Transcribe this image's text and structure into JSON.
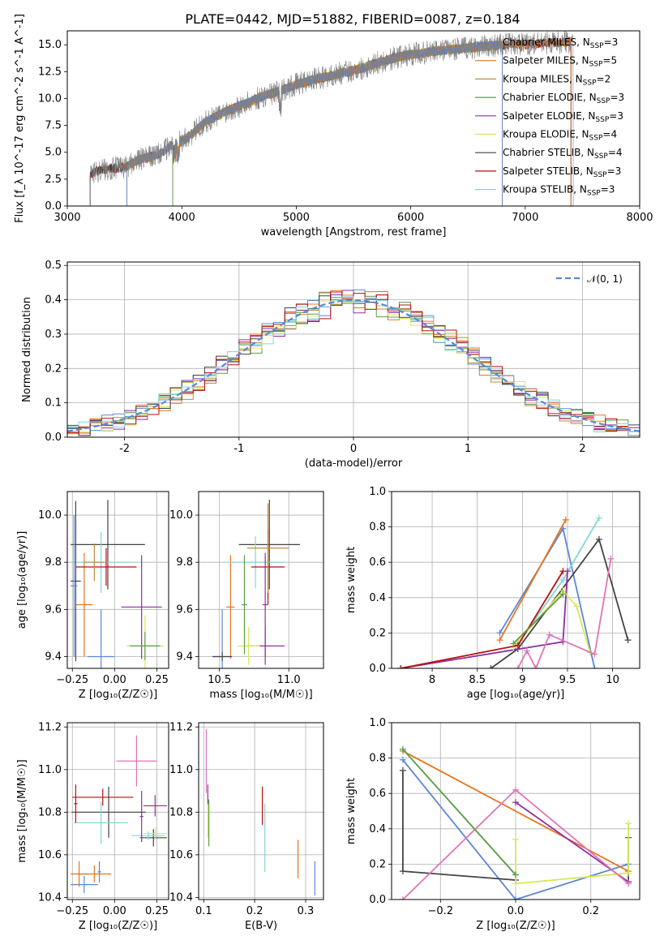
{
  "figure": {
    "title": "PLATE=0442, MJD=51882, FIBERID=0087, z=0.184"
  },
  "series_styles": [
    {
      "name": "Chabrier MILES",
      "nssp": "3",
      "color": "#5b87d6"
    },
    {
      "name": "Salpeter MILES",
      "nssp": "5",
      "color": "#e8741d"
    },
    {
      "name": "Kroupa MILES",
      "nssp": "2",
      "color": "#c08a3a"
    },
    {
      "name": "Chabrier ELODIE",
      "nssp": "3",
      "color": "#5c9e45"
    },
    {
      "name": "Salpeter ELODIE",
      "nssp": "3",
      "color": "#8e2fa3"
    },
    {
      "name": "Kroupa ELODIE",
      "nssp": "4",
      "color": "#d6e85b"
    },
    {
      "name": "Chabrier STELIB",
      "nssp": "4",
      "color": "#444444"
    },
    {
      "name": "Salpeter STELIB",
      "nssp": "3",
      "color": "#b80f0f"
    },
    {
      "name": "Kroupa STELIB",
      "nssp": "3",
      "color": "#82d6d6"
    }
  ],
  "chart_data": [
    {
      "id": "spectrum",
      "type": "line",
      "xlabel": "wavelength [Angstrom, rest frame]",
      "ylabel": "Flux [f_λ 10^-17 erg cm^-2 s^-1 A^-1]",
      "xlim": [
        3000,
        8000
      ],
      "ylim": [
        0,
        16.3
      ],
      "xticks": [
        3000,
        4000,
        5000,
        6000,
        7000,
        8000
      ],
      "yticks": [
        0.0,
        2.5,
        5.0,
        7.5,
        10.0,
        12.5,
        15.0
      ],
      "data_spectrum": {
        "x": [
          3200,
          3300,
          3400,
          3500,
          3600,
          3700,
          3800,
          3900,
          4000,
          4100,
          4200,
          4300,
          4400,
          4500,
          4600,
          4700,
          4800,
          4900,
          5000,
          5100,
          5200,
          5300,
          5400,
          5500,
          5600,
          5700,
          5800,
          5900,
          6000,
          6100,
          6200,
          6300,
          6400,
          6500,
          6600,
          6700,
          6800,
          6900,
          7000,
          7100,
          7200,
          7300,
          7400
        ],
        "y": [
          3.0,
          3.4,
          3.5,
          3.6,
          4.2,
          4.5,
          4.8,
          5.6,
          6.0,
          6.8,
          7.8,
          8.3,
          8.9,
          9.3,
          9.7,
          10.2,
          10.5,
          10.9,
          11.3,
          11.6,
          11.9,
          12.1,
          12.4,
          12.6,
          12.9,
          13.3,
          13.6,
          13.9,
          14.1,
          14.2,
          14.4,
          14.5,
          14.6,
          14.7,
          14.8,
          14.9,
          15.0,
          15.1,
          15.0,
          15.1,
          15.2,
          15.2,
          15.3
        ]
      },
      "model_cut_starts": [
        3520,
        3520,
        3520,
        3920,
        3920,
        3920,
        3200,
        3200,
        3200
      ],
      "model_cut_ends": [
        6800,
        7400,
        6800,
        6800,
        6800,
        6800,
        7400,
        7400,
        6800
      ],
      "legend_position": "upper right"
    },
    {
      "id": "residuals",
      "type": "histogram",
      "xlabel": "(data-model)/error",
      "ylabel": "Normed distribution",
      "xlim": [
        -2.5,
        2.5
      ],
      "ylim": [
        0,
        0.51
      ],
      "xticks": [
        -2,
        -1,
        0,
        1,
        2
      ],
      "yticks": [
        0.0,
        0.1,
        0.2,
        0.3,
        0.4,
        0.5
      ],
      "bin_edges": [
        -2.5,
        -2.4,
        -2.3,
        -2.2,
        -2.1,
        -2.0,
        -1.9,
        -1.8,
        -1.7,
        -1.6,
        -1.5,
        -1.4,
        -1.3,
        -1.2,
        -1.1,
        -1.0,
        -0.9,
        -0.8,
        -0.7,
        -0.6,
        -0.5,
        -0.4,
        -0.3,
        -0.2,
        -0.1,
        0.0,
        0.1,
        0.2,
        0.3,
        0.4,
        0.5,
        0.6,
        0.7,
        0.8,
        0.9,
        1.0,
        1.1,
        1.2,
        1.3,
        1.4,
        1.5,
        1.6,
        1.7,
        1.8,
        1.9,
        2.0,
        2.1,
        2.2,
        2.3,
        2.4,
        2.5
      ],
      "gaussian_label": "𝒩(0, 1)",
      "gaussian_color": "#5b87d6",
      "legend_position": "upper right"
    },
    {
      "id": "age-vs-Z",
      "type": "errorbar",
      "xlabel": "Z [log₁₀(Z/Z☉)]",
      "ylabel": "age  [log₁₀(age/yr)]",
      "xlim": [
        -0.28,
        0.32
      ],
      "ylim": [
        9.35,
        10.1
      ],
      "xticks": [
        -0.25,
        0.0,
        0.25
      ],
      "xticklabels": [
        "−0.25",
        "0.00",
        "0.25"
      ],
      "yticks": [
        9.4,
        9.6,
        9.8,
        10.0
      ],
      "points": [
        {
          "s": 0,
          "x": -0.08,
          "y": 9.4,
          "xerr": 0.08,
          "yerr": 0.2
        },
        {
          "s": 1,
          "x": -0.18,
          "y": 9.62,
          "xerr": 0.05,
          "yerr": 0.22
        },
        {
          "s": 6,
          "x": -0.04,
          "y": 9.875,
          "xerr": 0.22,
          "yerr": 0.19
        },
        {
          "s": 8,
          "x": -0.08,
          "y": 9.8,
          "xerr": 0.17,
          "yerr": 0.13
        },
        {
          "s": 4,
          "x": 0.16,
          "y": 9.61,
          "xerr": 0.12,
          "yerr": 0.22
        },
        {
          "s": 5,
          "x": 0.18,
          "y": 9.445,
          "xerr": 0.11,
          "yerr": 0.13
        },
        {
          "s": 7,
          "x": -0.05,
          "y": 9.78,
          "xerr": 0.18,
          "yerr": 0.08
        },
        {
          "s": 2,
          "x": -0.12,
          "y": 9.8,
          "xerr": 0.06,
          "yerr": 0.08
        },
        {
          "s": 6,
          "x": -0.23,
          "y": 9.72,
          "xerr": 0.03,
          "yerr": 0.34
        },
        {
          "s": 3,
          "x": 0.18,
          "y": 9.445,
          "xerr": 0.09,
          "yerr": 0.06
        },
        {
          "s": 0,
          "x": -0.24,
          "y": 9.7,
          "xerr": 0.02,
          "yerr": 0.3
        }
      ]
    },
    {
      "id": "age-vs-mass",
      "type": "errorbar",
      "xlabel": "mass [log₁₀(M/M☉)]",
      "ylabel": "",
      "xlim": [
        10.35,
        11.25
      ],
      "ylim": [
        9.35,
        10.1
      ],
      "xticks": [
        10.5,
        11.0
      ],
      "xticklabels": [
        "10.5",
        "11.0"
      ],
      "yticks": [
        9.4,
        9.6,
        9.8,
        10.0
      ],
      "points": [
        {
          "s": 0,
          "x": 10.52,
          "y": 9.4,
          "xerr": 0.07,
          "yerr": 0.2
        },
        {
          "s": 1,
          "x": 10.58,
          "y": 9.61,
          "xerr": 0.03,
          "yerr": 0.22
        },
        {
          "s": 6,
          "x": 10.86,
          "y": 9.875,
          "xerr": 0.22,
          "yerr": 0.19
        },
        {
          "s": 8,
          "x": 10.76,
          "y": 9.8,
          "xerr": 0.2,
          "yerr": 0.11
        },
        {
          "s": 4,
          "x": 10.83,
          "y": 9.445,
          "xerr": 0.14,
          "yerr": 0.08
        },
        {
          "s": 5,
          "x": 10.71,
          "y": 9.445,
          "xerr": 0.08,
          "yerr": 0.08
        },
        {
          "s": 7,
          "x": 10.85,
          "y": 9.78,
          "xerr": 0.12,
          "yerr": 0.16
        },
        {
          "s": 3,
          "x": 10.68,
          "y": 9.62,
          "xerr": 0.02,
          "yerr": 0.21
        },
        {
          "s": 2,
          "x": 10.85,
          "y": 9.86,
          "xerr": 0.15,
          "yerr": 0.19
        },
        {
          "s": 4,
          "x": 10.83,
          "y": 9.62,
          "xerr": 0.02,
          "yerr": 0.22
        },
        {
          "s": 6,
          "x": 10.52,
          "y": 9.4,
          "xerr": 0.07,
          "yerr": 0.02
        }
      ]
    },
    {
      "id": "massweight-vs-age",
      "type": "line",
      "xlabel": "age  [log₁₀(age/yr)]",
      "ylabel": "mass weight",
      "xlim": [
        7.55,
        10.3
      ],
      "ylim": [
        0.0,
        1.0
      ],
      "xticks": [
        8.0,
        8.5,
        9.0,
        9.5,
        10.0
      ],
      "yticks": [
        0.0,
        0.2,
        0.4,
        0.6,
        0.8,
        1.0
      ],
      "lines": [
        {
          "s": 0,
          "x": [
            8.75,
            9.45,
            9.8
          ],
          "y": [
            0.2,
            0.79,
            0.0
          ]
        },
        {
          "s": 1,
          "x": [
            8.75,
            9.48
          ],
          "y": [
            0.16,
            0.84
          ]
        },
        {
          "s": 6,
          "x": [
            8.65,
            8.95,
            9.85,
            10.17
          ],
          "y": [
            0.0,
            0.11,
            0.73,
            0.16
          ]
        },
        {
          "s": 8,
          "x": [
            8.95,
            9.45,
            9.85
          ],
          "y": [
            0.14,
            0.5,
            0.85
          ]
        },
        {
          "s": 4,
          "x": [
            7.65,
            9.45,
            9.5
          ],
          "y": [
            0.0,
            0.15,
            0.55
          ]
        },
        {
          "s": 5,
          "x": [
            8.9,
            9.45,
            9.6,
            9.75
          ],
          "y": [
            0.12,
            0.44,
            0.35,
            0.09
          ]
        },
        {
          "s": 9,
          "x": [
            8.95,
            9.05,
            9.15,
            9.3,
            9.8,
            9.98
          ],
          "y": [
            0.0,
            0.1,
            0.0,
            0.19,
            0.08,
            0.62
          ]
        },
        {
          "s": 7,
          "x": [
            7.65,
            8.95,
            9.45
          ],
          "y": [
            0.0,
            0.13,
            0.55
          ]
        },
        {
          "s": 3,
          "x": [
            8.9,
            9.45
          ],
          "y": [
            0.14,
            0.42
          ]
        }
      ]
    },
    {
      "id": "mass-vs-Z",
      "type": "errorbar",
      "xlabel": "Z [log₁₀(Z/Z☉)]",
      "ylabel": "mass [log₁₀(M/M☉)]",
      "xlim": [
        -0.28,
        0.32
      ],
      "ylim": [
        10.39,
        11.22
      ],
      "xticks": [
        -0.25,
        0.0,
        0.25
      ],
      "xticklabels": [
        "−0.25",
        "0.00",
        "0.25"
      ],
      "yticks": [
        10.4,
        10.6,
        10.8,
        11.0,
        11.2
      ],
      "points": [
        {
          "s": 0,
          "x": -0.18,
          "y": 10.46,
          "xerr": 0.08,
          "yerr": 0.04
        },
        {
          "s": 0,
          "x": -0.09,
          "y": 10.52,
          "xerr": 0.01,
          "yerr": 0.05
        },
        {
          "s": 1,
          "x": -0.21,
          "y": 10.51,
          "xerr": 0.05,
          "yerr": 0.06
        },
        {
          "s": 1,
          "x": -0.12,
          "y": 10.51,
          "xerr": 0.1,
          "yerr": 0.04
        },
        {
          "s": 6,
          "x": -0.035,
          "y": 10.8,
          "xerr": 0.22,
          "yerr": 0.12
        },
        {
          "s": 6,
          "x": 0.23,
          "y": 10.68,
          "xerr": 0.08,
          "yerr": 0.04
        },
        {
          "s": 8,
          "x": -0.08,
          "y": 10.75,
          "xerr": 0.16,
          "yerr": 0.1
        },
        {
          "s": 8,
          "x": 0.2,
          "y": 10.69,
          "xerr": 0.1,
          "yerr": 0.02
        },
        {
          "s": 4,
          "x": 0.24,
          "y": 10.83,
          "xerr": 0.07,
          "yerr": 0.05
        },
        {
          "s": 4,
          "x": 0.16,
          "y": 10.78,
          "xerr": 0.01,
          "yerr": 0.12
        },
        {
          "s": 5,
          "x": 0.24,
          "y": 10.7,
          "xerr": 0.07,
          "yerr": 0.03
        },
        {
          "s": 9,
          "x": 0.13,
          "y": 11.04,
          "xerr": 0.12,
          "yerr": 0.12
        },
        {
          "s": 7,
          "x": -0.07,
          "y": 10.87,
          "xerr": 0.18,
          "yerr": 0.04
        },
        {
          "s": 7,
          "x": -0.23,
          "y": 10.84,
          "xerr": 0.01,
          "yerr": 0.09
        }
      ]
    },
    {
      "id": "mass-vs-EBV",
      "type": "errorbar",
      "xlabel": "E(B-V)",
      "ylabel": "",
      "xlim": [
        0.09,
        0.335
      ],
      "ylim": [
        10.39,
        11.22
      ],
      "xticks": [
        0.1,
        0.2,
        0.3
      ],
      "xticklabels": [
        "0.1",
        "0.2",
        "0.3"
      ],
      "yticks": [
        10.4,
        10.6,
        10.8,
        11.0,
        11.2
      ],
      "points": [
        {
          "s": 9,
          "x": 0.105,
          "y": 11.04,
          "xerr": 0.0,
          "yerr": 0.15
        },
        {
          "s": 4,
          "x": 0.108,
          "y": 10.88,
          "xerr": 0.0,
          "yerr": 0.05
        },
        {
          "s": 3,
          "x": 0.11,
          "y": 10.75,
          "xerr": 0.0,
          "yerr": 0.11
        },
        {
          "s": 5,
          "x": 0.108,
          "y": 10.76,
          "xerr": 0.0,
          "yerr": 0.08
        },
        {
          "s": 7,
          "x": 0.215,
          "y": 10.83,
          "xerr": 0.0,
          "yerr": 0.09
        },
        {
          "s": 8,
          "x": 0.22,
          "y": 10.68,
          "xerr": 0.0,
          "yerr": 0.16
        },
        {
          "s": 1,
          "x": 0.285,
          "y": 10.58,
          "xerr": 0.0,
          "yerr": 0.09
        },
        {
          "s": 0,
          "x": 0.318,
          "y": 10.49,
          "xerr": 0.0,
          "yerr": 0.08
        }
      ]
    },
    {
      "id": "massweight-vs-Z",
      "type": "line",
      "xlabel": "Z [log₁₀(Z/Z☉)]",
      "ylabel": "mass weight",
      "xlim": [
        -0.33,
        0.33
      ],
      "ylim": [
        0.0,
        1.0
      ],
      "xticks": [
        -0.2,
        0.0,
        0.2
      ],
      "xticklabels": [
        "−0.2",
        "0.0",
        "0.2"
      ],
      "yticks": [
        0.0,
        0.2,
        0.4,
        0.6,
        0.8,
        1.0
      ],
      "lines": [
        {
          "s": 0,
          "x": [
            -0.3,
            0.0,
            0.3
          ],
          "y": [
            0.79,
            0.0,
            0.2
          ]
        },
        {
          "s": 1,
          "x": [
            -0.3,
            0.3
          ],
          "y": [
            0.84,
            0.16
          ]
        },
        {
          "s": 6,
          "x": [
            -0.3,
            -0.3,
            0.0
          ],
          "y": [
            0.73,
            0.16,
            0.11
          ]
        },
        {
          "s": 6,
          "x": [
            0.3,
            0.3
          ],
          "y": [
            0.35,
            0.1
          ]
        },
        {
          "s": 8,
          "x": [
            -0.3,
            0.0
          ],
          "y": [
            0.85,
            0.14
          ]
        },
        {
          "s": 4,
          "x": [
            0.0,
            0.3
          ],
          "y": [
            0.55,
            0.1
          ]
        },
        {
          "s": 5,
          "x": [
            0.0,
            0.0,
            0.3,
            0.3
          ],
          "y": [
            0.34,
            0.09,
            0.15,
            0.43
          ]
        },
        {
          "s": 9,
          "x": [
            -0.3,
            0.0,
            0.3
          ],
          "y": [
            0.0,
            0.62,
            0.09
          ]
        },
        {
          "s": 3,
          "x": [
            -0.3,
            0.0
          ],
          "y": [
            0.85,
            0.14
          ]
        }
      ]
    }
  ],
  "extra_colors": {
    "9": "#e274b8"
  }
}
